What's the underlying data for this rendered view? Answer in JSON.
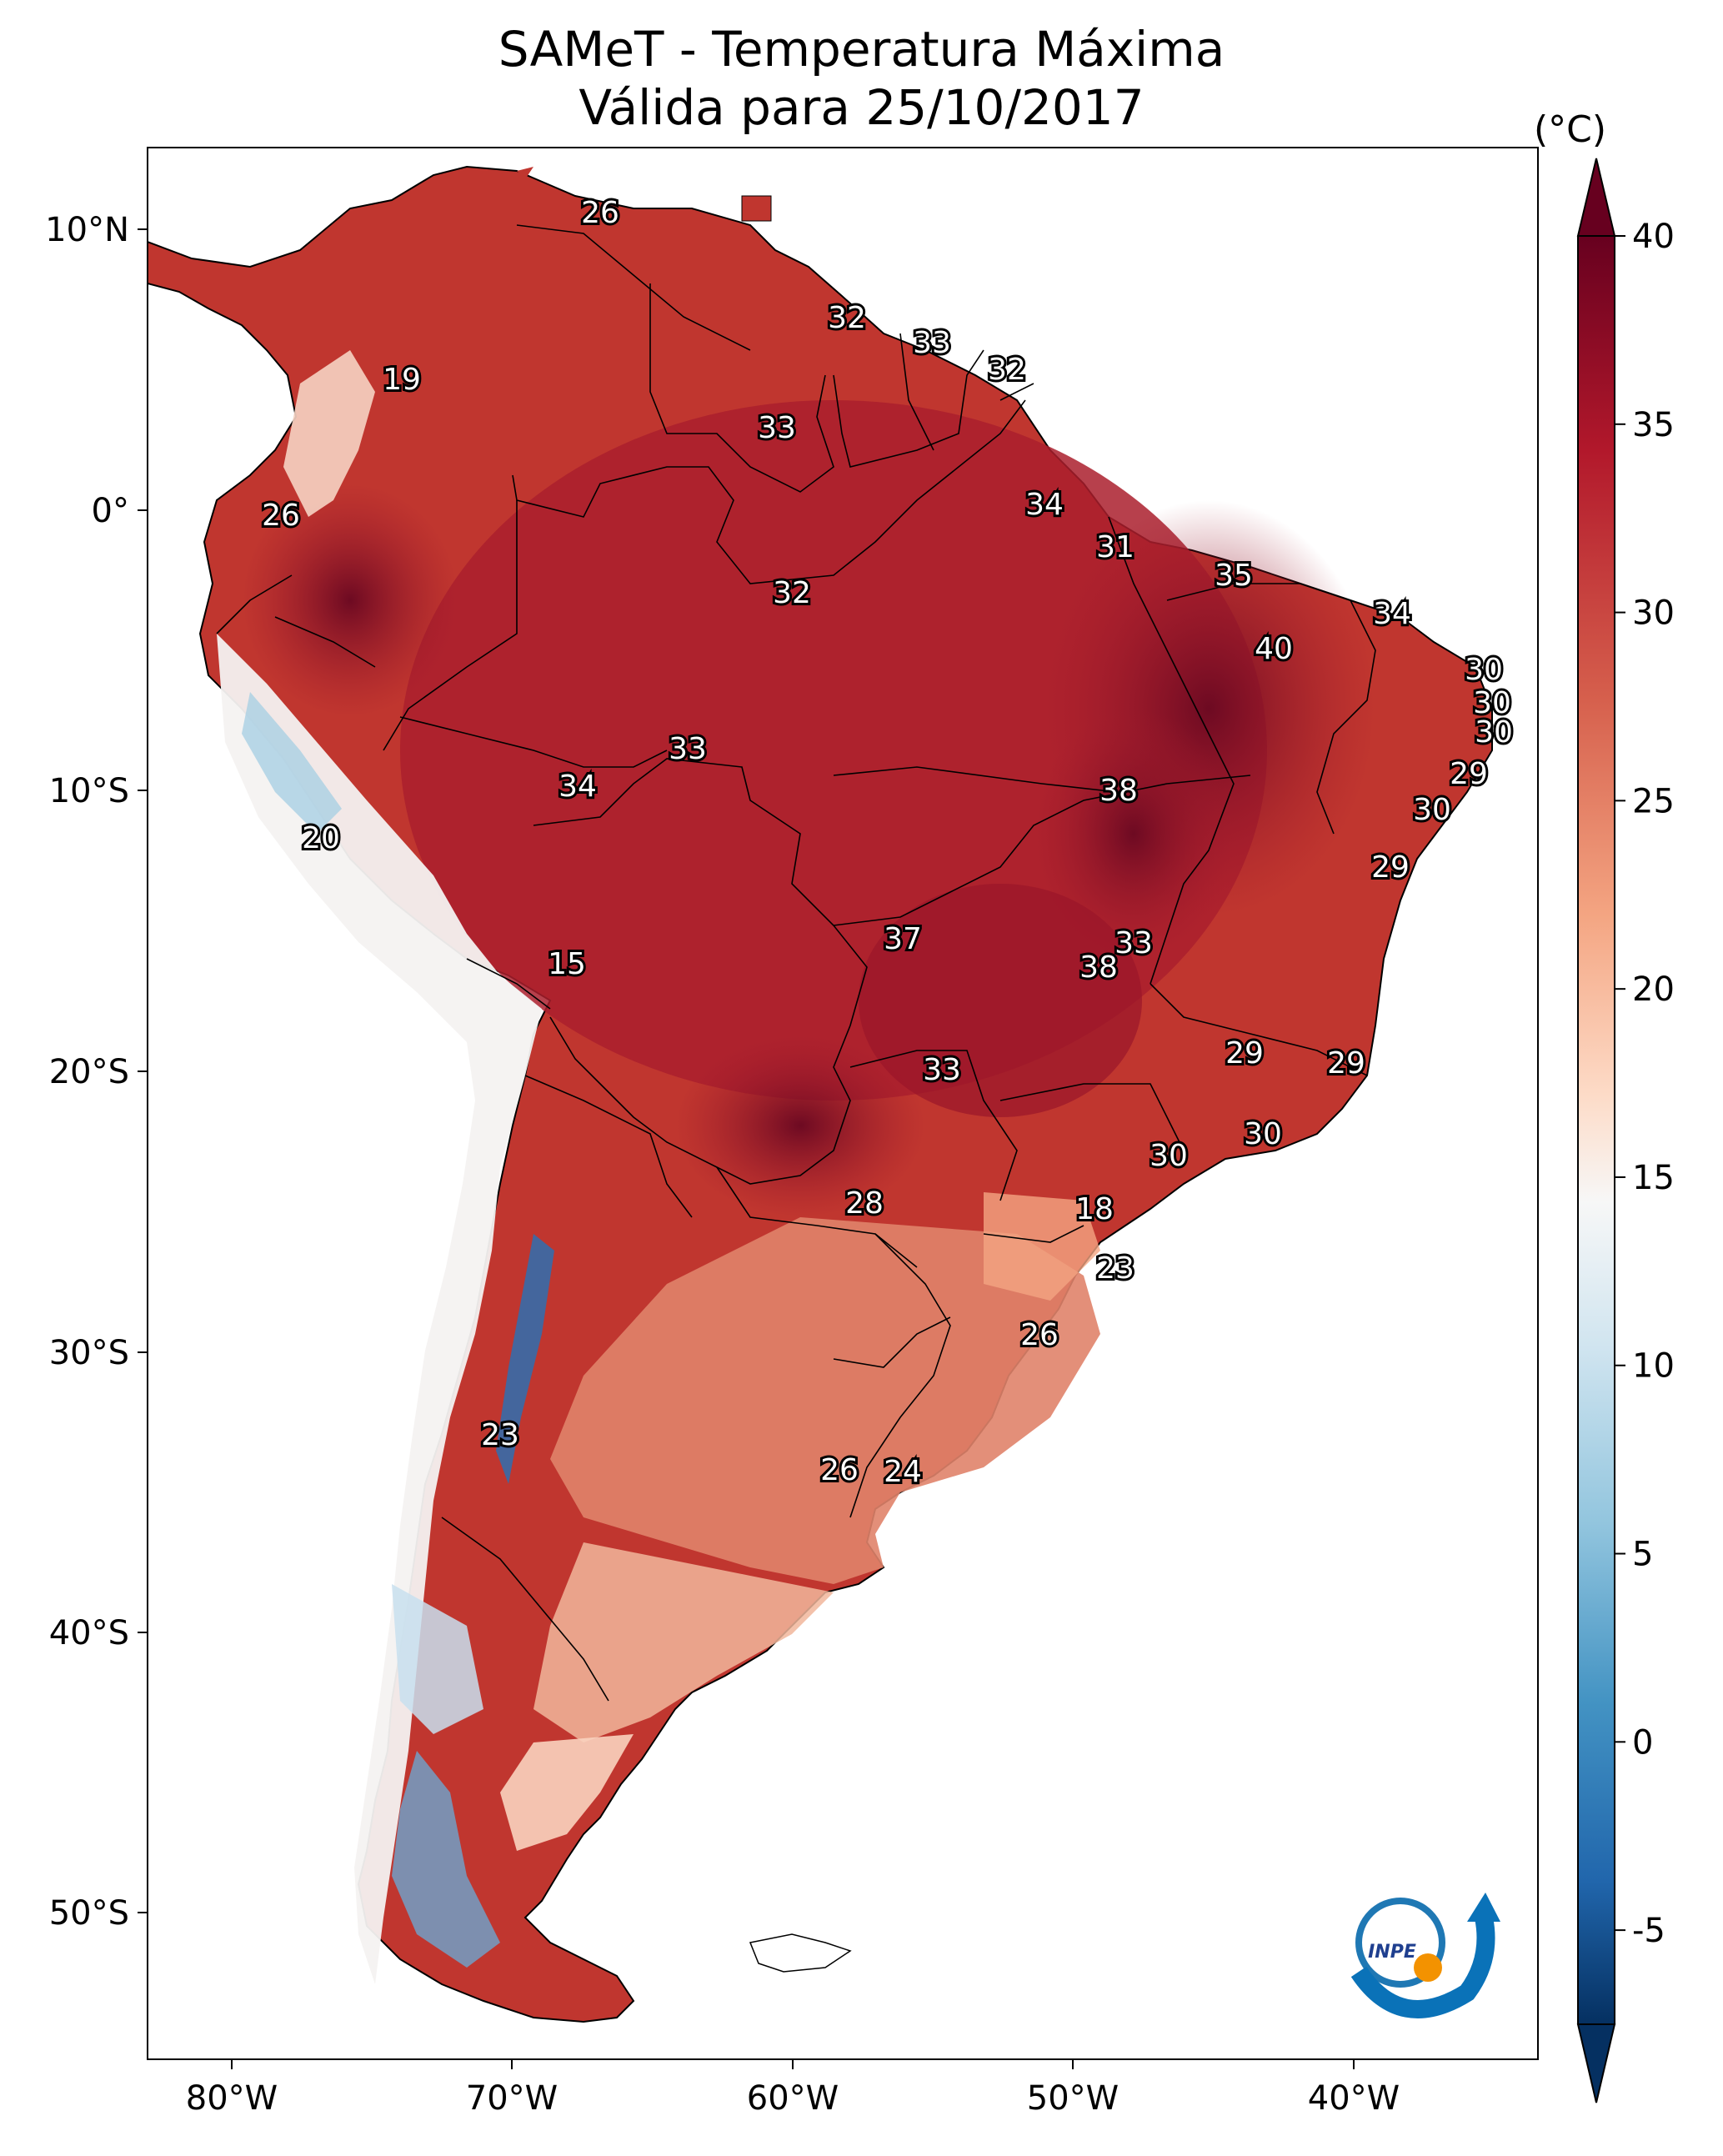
{
  "title_line1": "SAMeT - Temperatura Máxima",
  "title_line2": "Válida para 25/10/2017",
  "colorbar": {
    "units": "(°C)",
    "ticks": [
      "40",
      "35",
      "30",
      "25",
      "20",
      "15",
      "10",
      "5",
      "0",
      "-5"
    ],
    "colors": [
      "#67001f",
      "#b2182b",
      "#d6604d",
      "#f4a582",
      "#fddbc7",
      "#f7f7f7",
      "#d1e5f0",
      "#92c5de",
      "#4393c3",
      "#2166ac",
      "#053061"
    ]
  },
  "axes": {
    "lat_ticks": [
      "10°N",
      "0°",
      "10°S",
      "20°S",
      "30°S",
      "40°S",
      "50°S"
    ],
    "lon_ticks": [
      "80°W",
      "70°W",
      "60°W",
      "50°W",
      "40°W"
    ]
  },
  "logo": {
    "text": "INPE"
  },
  "temperature_labels": [
    "26",
    "19",
    "26",
    "32",
    "33",
    "32",
    "33",
    "34",
    "31",
    "35",
    "34",
    "40",
    "30",
    "30",
    "30",
    "29",
    "32",
    "33",
    "34",
    "38",
    "30",
    "29",
    "20",
    "15",
    "37",
    "33",
    "38",
    "33",
    "29",
    "29",
    "30",
    "30",
    "28",
    "18",
    "23",
    "26",
    "23",
    "26",
    "24"
  ]
}
